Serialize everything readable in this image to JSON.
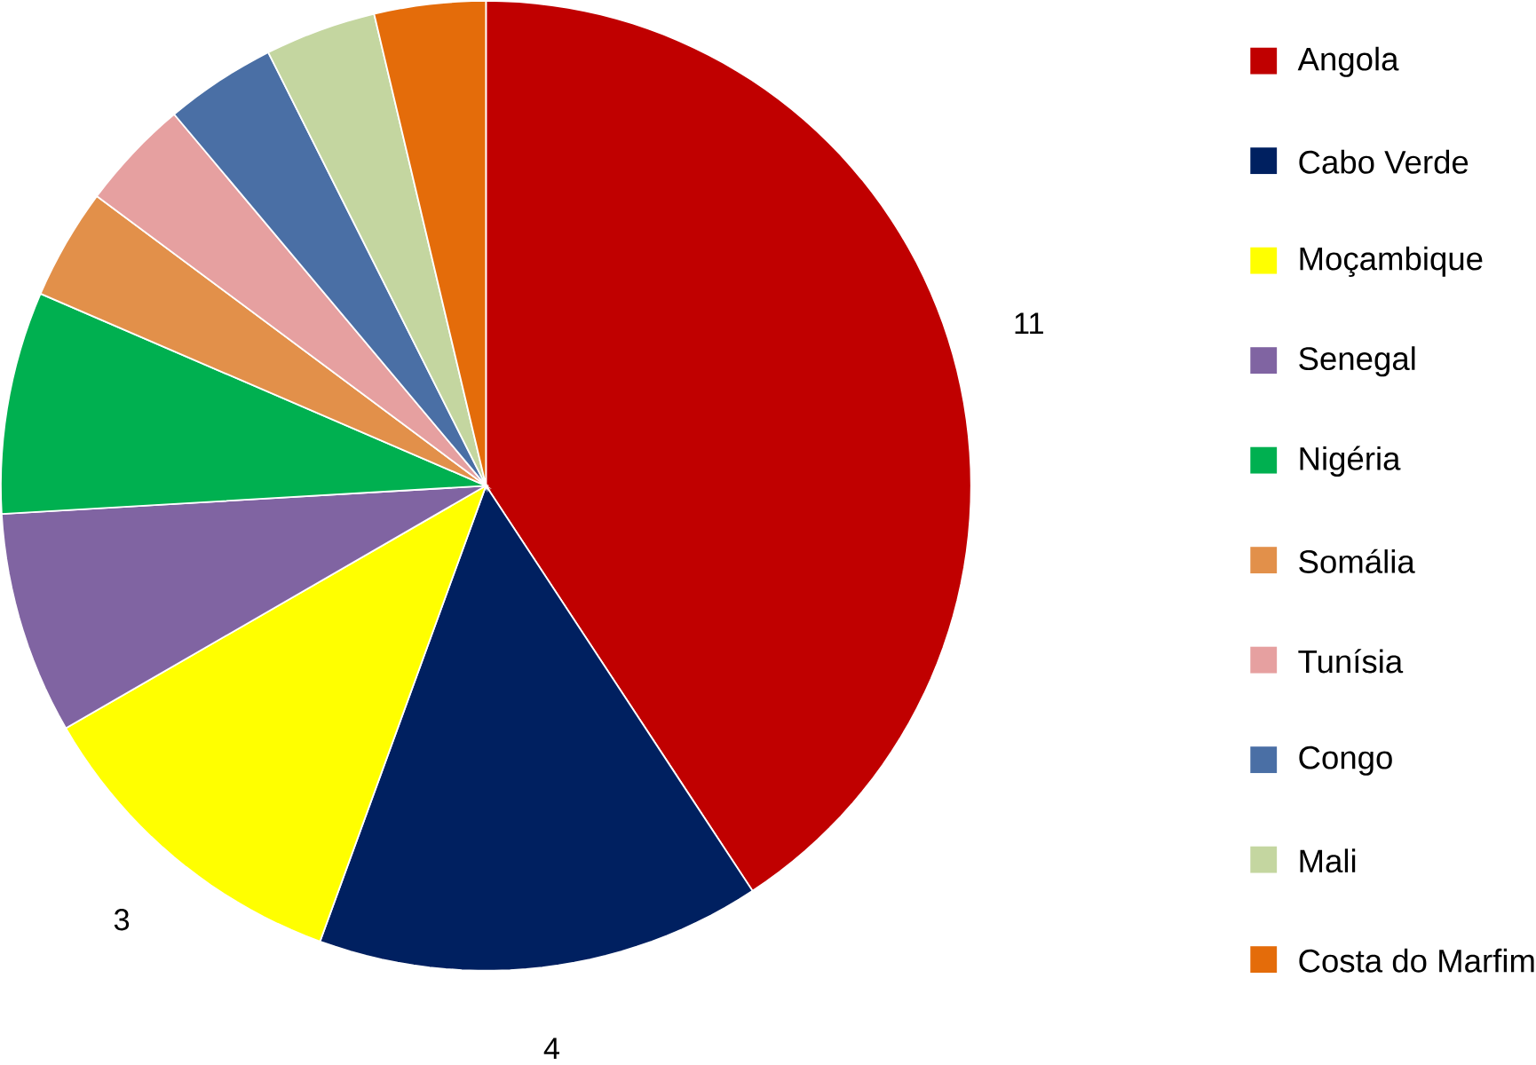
{
  "chart_data": {
    "type": "pie",
    "categories": [
      "Angola",
      "Cabo Verde",
      "Moçambique",
      "Senegal",
      "Nigéria",
      "Somália",
      "Tunísia",
      "Congo",
      "Mali",
      "Costa do Marfim"
    ],
    "values": [
      11,
      4,
      3,
      2,
      2,
      1,
      1,
      1,
      1,
      1
    ],
    "value_labels": [
      "11",
      "4",
      "3",
      null,
      null,
      null,
      null,
      null,
      null,
      null
    ],
    "colors": [
      "#c00000",
      "#002060",
      "#ffff00",
      "#8064a2",
      "#00b050",
      "#e2904a",
      "#e6a0a0",
      "#4a6fa5",
      "#c4d6a0",
      "#e46c0a"
    ],
    "legend": "right"
  }
}
